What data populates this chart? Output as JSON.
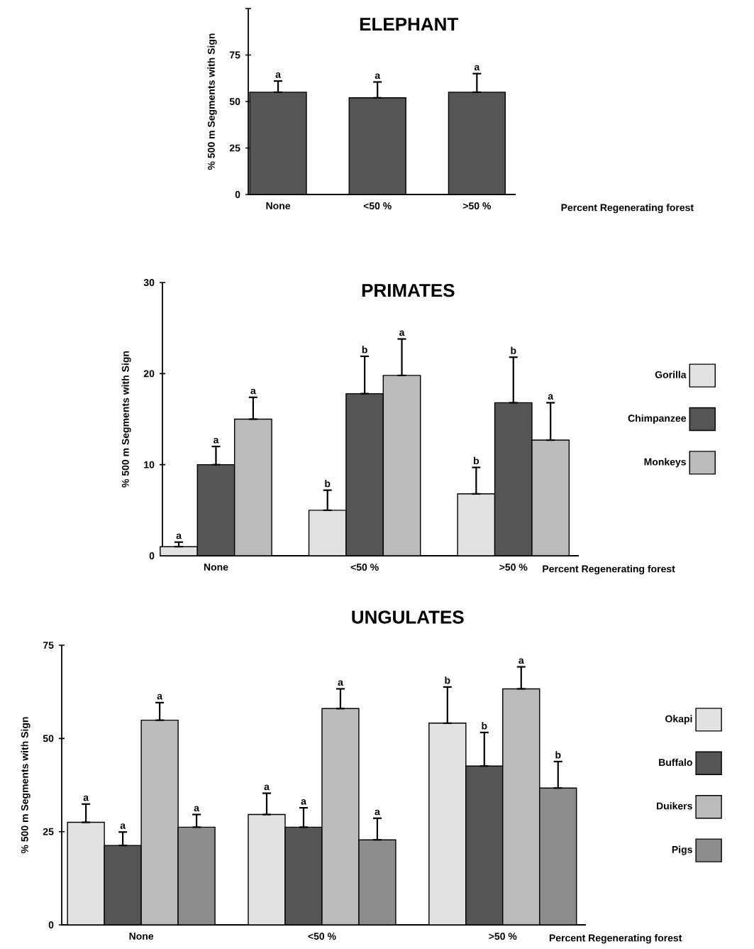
{
  "chart_data": [
    {
      "type": "bar",
      "title": "ELEPHANT",
      "xlabel": "Percent Regenerating forest",
      "ylabel": "% 500 m Segments with Sign",
      "categories": [
        "None",
        "<50 %",
        ">50 %"
      ],
      "values": [
        55,
        52,
        55
      ],
      "errors": [
        [
          55,
          61
        ],
        [
          52,
          60.5
        ],
        [
          55,
          65
        ]
      ],
      "color": "#555555",
      "ylim": [
        0,
        100
      ],
      "yticks": [
        0,
        25,
        50,
        75,
        {
          "value": 100,
          "label": null
        }
      ],
      "annotations": [
        "a",
        "a",
        "a"
      ]
    },
    {
      "type": "bar",
      "title": "PRIMATES",
      "xlabel": "Percent Regenerating forest",
      "ylabel": "% 500 m Segments with Sign",
      "categories": [
        "None",
        "<50 %",
        ">50 %"
      ],
      "series": [
        {
          "name": "Gorilla",
          "color": "#e2e2e2",
          "values": [
            1,
            5,
            6.8
          ],
          "errors": [
            [
              1,
              1.5
            ],
            [
              5,
              7.2
            ],
            [
              6.8,
              9.7
            ]
          ]
        },
        {
          "name": "Chimpanzee",
          "color": "#555555",
          "values": [
            10,
            17.8,
            16.8
          ],
          "errors": [
            [
              10,
              12
            ],
            [
              17.8,
              21.9
            ],
            [
              16.8,
              21.8
            ]
          ]
        },
        {
          "name": "Monkeys",
          "color": "#bbbbbb",
          "values": [
            15,
            19.8,
            12.7
          ],
          "errors": [
            [
              15,
              17.4
            ],
            [
              19.8,
              23.8
            ],
            [
              12.7,
              16.8
            ]
          ]
        }
      ],
      "annotations": [
        "a",
        "b",
        "b",
        "a",
        "b",
        "b",
        "a",
        "a",
        "a"
      ],
      "ylim": [
        0,
        30
      ],
      "yticks": [
        0,
        10,
        20,
        30
      ],
      "legend": "right"
    },
    {
      "type": "bar",
      "title": "UNGULATES",
      "xlabel": "Percent Regenerating forest",
      "ylabel": "% 500 m Segments with Sign",
      "categories": [
        "None",
        "<50 %",
        ">50 %"
      ],
      "series": [
        {
          "name": "Okapi",
          "color": "#e2e2e2",
          "values": [
            27.5,
            29.6,
            54.1
          ],
          "errors": [
            [
              27.5,
              32.4
            ],
            [
              29.6,
              35.3
            ],
            [
              54.1,
              63.8
            ]
          ]
        },
        {
          "name": "Buffalo",
          "color": "#555555",
          "values": [
            21.3,
            26.2,
            42.6
          ],
          "errors": [
            [
              21.3,
              24.9
            ],
            [
              26.2,
              31.4
            ],
            [
              42.6,
              51.6
            ]
          ]
        },
        {
          "name": "Duikers",
          "color": "#bbbbbb",
          "values": [
            54.9,
            58,
            63.3
          ],
          "errors": [
            [
              54.9,
              59.6
            ],
            [
              58,
              63.3
            ],
            [
              63.3,
              69.2
            ]
          ]
        },
        {
          "name": "Pigs",
          "color": "#8c8c8c",
          "values": [
            26.2,
            22.8,
            36.7
          ],
          "errors": [
            [
              26.2,
              29.6
            ],
            [
              22.8,
              28.6
            ],
            [
              36.7,
              43.8
            ]
          ]
        }
      ],
      "annotations": [
        "a",
        "a",
        "b",
        "a",
        "a",
        "b",
        "a",
        "a",
        "a",
        "a",
        "a",
        "b"
      ],
      "ylim": [
        0,
        75
      ],
      "yticks": [
        0,
        25,
        50,
        75
      ],
      "legend": "right"
    }
  ]
}
